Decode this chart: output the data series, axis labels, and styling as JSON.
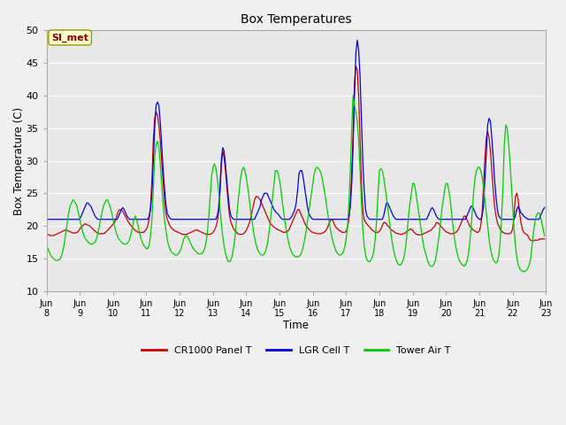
{
  "title": "Box Temperatures",
  "xlabel": "Time",
  "ylabel": "Box Temperature (C)",
  "ylim": [
    10,
    50
  ],
  "background_color": "#e8e8e8",
  "fig_facecolor": "#f0f0f0",
  "legend_label": "SI_met",
  "series": {
    "CR1000 Panel T": {
      "color": "#cc0000"
    },
    "LGR Cell T": {
      "color": "#0000ee"
    },
    "Tower Air T": {
      "color": "#00cc00"
    }
  },
  "ytick_labels": [
    10,
    15,
    20,
    25,
    30,
    35,
    40,
    45,
    50
  ],
  "xtick_labels": [
    "Jun 8",
    "Jun 9",
    "Jun 10",
    "Jun 11",
    "Jun 12",
    "Jun 13",
    "Jun 14",
    "Jun 15",
    "Jun 16",
    "Jun 17",
    "Jun 18",
    "Jun 19",
    "Jun 20",
    "Jun 21",
    "Jun 22",
    "Jun 23"
  ],
  "cr1000_x": [
    8.0,
    8.042,
    8.083,
    8.125,
    8.167,
    8.208,
    8.25,
    8.292,
    8.333,
    8.375,
    8.417,
    8.458,
    8.5,
    8.542,
    8.583,
    8.625,
    8.667,
    8.708,
    8.75,
    8.792,
    8.833,
    8.875,
    8.917,
    8.958,
    9.0,
    9.042,
    9.083,
    9.125,
    9.167,
    9.208,
    9.25,
    9.292,
    9.333,
    9.375,
    9.417,
    9.458,
    9.5,
    9.542,
    9.583,
    9.625,
    9.667,
    9.708,
    9.75,
    9.792,
    9.833,
    9.875,
    9.917,
    9.958,
    10.0,
    10.042,
    10.083,
    10.125,
    10.167,
    10.208,
    10.25,
    10.292,
    10.333,
    10.375,
    10.417,
    10.458,
    10.5,
    10.542,
    10.583,
    10.625,
    10.667,
    10.708,
    10.75,
    10.792,
    10.833,
    10.875,
    10.917,
    10.958,
    11.0,
    11.042,
    11.083,
    11.125,
    11.167,
    11.208,
    11.25,
    11.292,
    11.333,
    11.375,
    11.417,
    11.458,
    11.5,
    11.542,
    11.583,
    11.625,
    11.667,
    11.708,
    11.75,
    11.792,
    11.833,
    11.875,
    11.917,
    11.958,
    12.0,
    12.042,
    12.083,
    12.125,
    12.167,
    12.208,
    12.25,
    12.292,
    12.333,
    12.375,
    12.417,
    12.458,
    12.5,
    12.542,
    12.583,
    12.625,
    12.667,
    12.708,
    12.75,
    12.792,
    12.833,
    12.875,
    12.917,
    12.958,
    13.0,
    13.042,
    13.083,
    13.125,
    13.167,
    13.208,
    13.25,
    13.292,
    13.333,
    13.375,
    13.417,
    13.458,
    13.5,
    13.542,
    13.583,
    13.625,
    13.667,
    13.708,
    13.75,
    13.792,
    13.833,
    13.875,
    13.917,
    13.958,
    14.0,
    14.042,
    14.083,
    14.125,
    14.167,
    14.208,
    14.25,
    14.292,
    14.333,
    14.375,
    14.417,
    14.458,
    14.5,
    14.542,
    14.583,
    14.625,
    14.667,
    14.708,
    14.75,
    14.792,
    14.833,
    14.875,
    14.917,
    14.958,
    15.0,
    15.042,
    15.083,
    15.125,
    15.167,
    15.208,
    15.25,
    15.292,
    15.333,
    15.375,
    15.417,
    15.458,
    15.5,
    15.542,
    15.583,
    15.625,
    15.667,
    15.708,
    15.75,
    15.792,
    15.833,
    15.875,
    15.917,
    15.958,
    16.0,
    16.042,
    16.083,
    16.125,
    16.167,
    16.208,
    16.25,
    16.292,
    16.333,
    16.375,
    16.417,
    16.458,
    16.5,
    16.542,
    16.583,
    16.625,
    16.667,
    16.708,
    16.75,
    16.792,
    16.833,
    16.875,
    16.917,
    16.958,
    17.0,
    17.042,
    17.083,
    17.125,
    17.167,
    17.208,
    17.25,
    17.292,
    17.333,
    17.375,
    17.417,
    17.458,
    17.5,
    17.542,
    17.583,
    17.625,
    17.667,
    17.708,
    17.75,
    17.792,
    17.833,
    17.875,
    17.917,
    17.958,
    18.0,
    18.042,
    18.083,
    18.125,
    18.167,
    18.208,
    18.25,
    18.292,
    18.333,
    18.375,
    18.417,
    18.458,
    18.5,
    18.542,
    18.583,
    18.625,
    18.667,
    18.708,
    18.75,
    18.792,
    18.833,
    18.875,
    18.917,
    18.958,
    19.0,
    19.042,
    19.083,
    19.125,
    19.167,
    19.208,
    19.25,
    19.292,
    19.333,
    19.375,
    19.417,
    19.458,
    19.5,
    19.542,
    19.583,
    19.625,
    19.667,
    19.708,
    19.75,
    19.792,
    19.833,
    19.875,
    19.917,
    19.958,
    20.0,
    20.042,
    20.083,
    20.125,
    20.167,
    20.208,
    20.25,
    20.292,
    20.333,
    20.375,
    20.417,
    20.458,
    20.5,
    20.542,
    20.583,
    20.625,
    20.667,
    20.708,
    20.75,
    20.792,
    20.833,
    20.875,
    20.917,
    20.958,
    21.0,
    21.042,
    21.083,
    21.125,
    21.167,
    21.208,
    21.25,
    21.292,
    21.333,
    21.375,
    21.417,
    21.458,
    21.5,
    21.542,
    21.583,
    21.625,
    21.667,
    21.708,
    21.75,
    21.792,
    21.833,
    21.875,
    21.917,
    21.958,
    22.0,
    22.042,
    22.083,
    22.125,
    22.167,
    22.208,
    22.25,
    22.292,
    22.333,
    22.375,
    22.417,
    22.458,
    22.5,
    22.542,
    22.583,
    22.625,
    22.667,
    22.708,
    22.75,
    22.792,
    22.833,
    22.875,
    22.917,
    22.958
  ],
  "cr1000_y": [
    18.8,
    18.7,
    18.6,
    18.5,
    18.5,
    18.5,
    18.6,
    18.7,
    18.8,
    18.9,
    19.0,
    19.1,
    19.2,
    19.3,
    19.4,
    19.3,
    19.2,
    19.1,
    19.0,
    18.9,
    18.9,
    18.9,
    19.0,
    19.2,
    19.5,
    19.8,
    20.0,
    20.2,
    20.3,
    20.2,
    20.1,
    20.0,
    19.8,
    19.6,
    19.4,
    19.2,
    19.0,
    18.9,
    18.8,
    18.8,
    18.8,
    18.8,
    18.9,
    19.1,
    19.3,
    19.5,
    19.8,
    20.0,
    20.3,
    20.5,
    21.0,
    21.8,
    22.3,
    22.5,
    22.5,
    22.2,
    21.8,
    21.4,
    21.0,
    20.6,
    20.3,
    20.0,
    19.8,
    19.5,
    19.3,
    19.2,
    19.0,
    19.0,
    19.0,
    19.0,
    19.0,
    19.2,
    19.5,
    20.0,
    21.0,
    23.0,
    27.0,
    33.0,
    36.5,
    37.5,
    37.0,
    35.5,
    33.0,
    30.0,
    27.0,
    24.0,
    22.0,
    21.0,
    20.5,
    20.0,
    19.7,
    19.5,
    19.3,
    19.2,
    19.1,
    19.0,
    18.9,
    18.8,
    18.7,
    18.7,
    18.7,
    18.7,
    18.8,
    18.9,
    19.0,
    19.1,
    19.2,
    19.3,
    19.4,
    19.3,
    19.2,
    19.1,
    19.0,
    18.9,
    18.8,
    18.7,
    18.7,
    18.7,
    18.7,
    18.8,
    19.0,
    19.3,
    19.8,
    20.5,
    22.0,
    25.0,
    29.0,
    31.5,
    30.5,
    28.5,
    26.0,
    23.5,
    21.5,
    20.5,
    20.0,
    19.5,
    19.2,
    19.0,
    18.8,
    18.7,
    18.7,
    18.7,
    18.8,
    19.0,
    19.3,
    19.8,
    20.3,
    21.0,
    22.0,
    23.0,
    24.0,
    24.5,
    24.5,
    24.3,
    24.0,
    23.5,
    23.0,
    22.5,
    22.0,
    21.5,
    21.0,
    20.5,
    20.2,
    20.0,
    19.8,
    19.7,
    19.5,
    19.4,
    19.3,
    19.2,
    19.1,
    19.0,
    19.0,
    19.1,
    19.2,
    19.5,
    20.0,
    20.5,
    21.0,
    21.5,
    22.0,
    22.5,
    22.5,
    22.0,
    21.5,
    21.0,
    20.5,
    20.0,
    19.8,
    19.5,
    19.3,
    19.1,
    19.0,
    18.9,
    18.9,
    18.8,
    18.8,
    18.8,
    18.8,
    18.9,
    19.0,
    19.2,
    19.5,
    20.0,
    20.5,
    21.0,
    21.0,
    20.5,
    20.0,
    19.7,
    19.5,
    19.3,
    19.2,
    19.0,
    19.0,
    19.0,
    19.2,
    19.8,
    21.0,
    23.5,
    28.0,
    34.0,
    42.0,
    44.5,
    44.0,
    40.0,
    33.5,
    27.0,
    22.5,
    21.0,
    20.5,
    20.3,
    20.0,
    19.8,
    19.5,
    19.3,
    19.2,
    19.0,
    19.0,
    19.0,
    19.2,
    19.5,
    20.0,
    20.5,
    20.5,
    20.3,
    20.0,
    19.8,
    19.5,
    19.3,
    19.2,
    19.0,
    18.9,
    18.8,
    18.8,
    18.7,
    18.7,
    18.8,
    18.8,
    19.0,
    19.2,
    19.3,
    19.5,
    19.5,
    19.3,
    19.0,
    18.8,
    18.7,
    18.6,
    18.6,
    18.7,
    18.7,
    18.8,
    18.9,
    19.0,
    19.1,
    19.2,
    19.3,
    19.5,
    19.8,
    20.0,
    20.5,
    20.5,
    20.3,
    20.0,
    19.8,
    19.5,
    19.3,
    19.1,
    19.0,
    18.9,
    18.8,
    18.8,
    18.8,
    18.9,
    19.0,
    19.2,
    19.5,
    20.0,
    20.5,
    21.0,
    21.5,
    21.5,
    21.0,
    20.5,
    20.0,
    19.7,
    19.5,
    19.3,
    19.2,
    19.0,
    19.0,
    19.2,
    20.0,
    22.0,
    26.0,
    30.5,
    33.5,
    34.5,
    33.5,
    31.5,
    28.5,
    25.5,
    23.0,
    21.5,
    20.5,
    20.0,
    19.5,
    19.2,
    19.0,
    18.9,
    18.8,
    18.8,
    18.8,
    18.8,
    19.0,
    19.5,
    21.5,
    24.5,
    25.0,
    24.0,
    22.0,
    20.5,
    19.5,
    19.0,
    18.8,
    18.7,
    18.5,
    18.0,
    17.8,
    17.7,
    17.7,
    17.8,
    17.8,
    17.8,
    17.9,
    18.0,
    18.0,
    18.0,
    18.0
  ],
  "lgr_y": [
    21.0,
    21.0,
    21.0,
    21.0,
    21.0,
    21.0,
    21.0,
    21.0,
    21.0,
    21.0,
    21.0,
    21.0,
    21.0,
    21.0,
    21.0,
    21.0,
    21.0,
    21.0,
    21.0,
    21.0,
    21.0,
    21.0,
    21.0,
    21.0,
    21.0,
    21.5,
    22.0,
    22.5,
    23.0,
    23.5,
    23.5,
    23.2,
    23.0,
    22.5,
    22.0,
    21.5,
    21.2,
    21.0,
    21.0,
    21.0,
    21.0,
    21.0,
    21.0,
    21.0,
    21.0,
    21.0,
    21.0,
    21.0,
    21.0,
    21.0,
    21.0,
    21.0,
    21.5,
    22.0,
    22.5,
    22.8,
    22.5,
    22.0,
    21.5,
    21.2,
    21.0,
    21.0,
    21.0,
    21.0,
    21.0,
    21.0,
    21.0,
    21.0,
    21.0,
    21.0,
    21.0,
    21.0,
    21.0,
    21.0,
    21.5,
    22.5,
    25.0,
    30.0,
    35.0,
    38.5,
    39.0,
    38.5,
    36.0,
    32.5,
    29.0,
    26.0,
    23.5,
    22.0,
    21.5,
    21.2,
    21.0,
    21.0,
    21.0,
    21.0,
    21.0,
    21.0,
    21.0,
    21.0,
    21.0,
    21.0,
    21.0,
    21.0,
    21.0,
    21.0,
    21.0,
    21.0,
    21.0,
    21.0,
    21.0,
    21.0,
    21.0,
    21.0,
    21.0,
    21.0,
    21.0,
    21.0,
    21.0,
    21.0,
    21.0,
    21.0,
    21.0,
    21.0,
    21.0,
    21.5,
    22.5,
    25.5,
    30.0,
    32.0,
    31.5,
    29.5,
    27.0,
    24.5,
    22.5,
    21.5,
    21.2,
    21.0,
    21.0,
    21.0,
    21.0,
    21.0,
    21.0,
    21.0,
    21.0,
    21.0,
    21.0,
    21.0,
    21.0,
    21.0,
    21.0,
    21.0,
    21.0,
    21.5,
    22.0,
    22.5,
    23.0,
    24.0,
    24.5,
    25.0,
    25.0,
    25.0,
    24.5,
    24.0,
    23.5,
    23.0,
    22.5,
    22.2,
    22.0,
    21.8,
    21.5,
    21.2,
    21.0,
    21.0,
    21.0,
    21.0,
    21.0,
    21.0,
    21.2,
    21.5,
    22.0,
    22.5,
    23.5,
    25.5,
    28.0,
    28.5,
    28.5,
    27.5,
    26.0,
    24.5,
    23.0,
    22.0,
    21.5,
    21.2,
    21.0,
    21.0,
    21.0,
    21.0,
    21.0,
    21.0,
    21.0,
    21.0,
    21.0,
    21.0,
    21.0,
    21.0,
    21.0,
    21.0,
    21.0,
    21.0,
    21.0,
    21.0,
    21.0,
    21.0,
    21.0,
    21.0,
    21.0,
    21.0,
    21.0,
    21.0,
    21.5,
    23.0,
    26.5,
    32.0,
    40.0,
    46.5,
    48.5,
    47.0,
    43.0,
    36.5,
    30.0,
    25.5,
    22.5,
    21.5,
    21.2,
    21.0,
    21.0,
    21.0,
    21.0,
    21.0,
    21.0,
    21.0,
    21.0,
    21.0,
    21.0,
    21.5,
    22.5,
    23.5,
    23.5,
    23.0,
    22.5,
    22.0,
    21.5,
    21.2,
    21.0,
    21.0,
    21.0,
    21.0,
    21.0,
    21.0,
    21.0,
    21.0,
    21.0,
    21.0,
    21.0,
    21.0,
    21.0,
    21.0,
    21.0,
    21.0,
    21.0,
    21.0,
    21.0,
    21.0,
    21.0,
    21.0,
    21.0,
    21.5,
    22.0,
    22.5,
    22.8,
    22.5,
    22.0,
    21.5,
    21.2,
    21.0,
    21.0,
    21.0,
    21.0,
    21.0,
    21.0,
    21.0,
    21.0,
    21.0,
    21.0,
    21.0,
    21.0,
    21.0,
    21.0,
    21.0,
    21.0,
    21.0,
    21.0,
    21.0,
    21.0,
    21.5,
    22.0,
    22.5,
    23.0,
    23.0,
    22.5,
    22.0,
    21.5,
    21.2,
    21.0,
    21.0,
    21.5,
    23.0,
    27.0,
    31.0,
    35.5,
    36.5,
    36.0,
    33.5,
    30.5,
    27.0,
    24.5,
    22.5,
    21.5,
    21.2,
    21.0,
    21.0,
    21.0,
    21.0,
    21.0,
    21.0,
    21.0,
    21.0,
    21.0,
    21.0,
    21.5,
    22.5,
    23.0,
    22.5,
    22.0,
    21.8,
    21.5,
    21.3,
    21.2,
    21.0,
    21.0,
    21.0,
    21.0,
    21.0,
    21.0,
    21.0,
    21.0,
    21.0,
    21.5,
    22.0,
    22.5,
    22.8
  ],
  "tower_y": [
    17.0,
    16.5,
    16.0,
    15.5,
    15.2,
    15.0,
    14.8,
    14.7,
    14.7,
    14.8,
    15.0,
    15.5,
    16.3,
    17.5,
    19.0,
    20.5,
    22.0,
    23.0,
    23.5,
    24.0,
    23.8,
    23.5,
    23.0,
    22.0,
    21.0,
    20.0,
    19.2,
    18.5,
    18.0,
    17.8,
    17.5,
    17.3,
    17.2,
    17.2,
    17.3,
    17.5,
    18.0,
    18.8,
    19.8,
    21.0,
    22.0,
    23.0,
    23.5,
    24.0,
    24.0,
    23.5,
    22.8,
    22.0,
    21.0,
    20.0,
    19.2,
    18.5,
    18.0,
    17.8,
    17.5,
    17.3,
    17.2,
    17.2,
    17.3,
    17.5,
    18.0,
    18.8,
    19.8,
    21.0,
    21.5,
    21.0,
    20.0,
    19.0,
    18.2,
    17.5,
    17.0,
    16.8,
    16.5,
    16.5,
    17.0,
    18.5,
    21.0,
    25.5,
    30.5,
    32.5,
    33.0,
    32.0,
    29.5,
    26.5,
    23.5,
    21.0,
    19.5,
    18.0,
    17.0,
    16.5,
    16.0,
    15.8,
    15.7,
    15.5,
    15.5,
    15.7,
    16.0,
    16.5,
    17.2,
    18.0,
    18.5,
    18.5,
    18.2,
    17.8,
    17.3,
    16.8,
    16.5,
    16.2,
    16.0,
    15.8,
    15.7,
    15.7,
    15.8,
    16.0,
    16.5,
    17.5,
    19.0,
    21.5,
    24.5,
    27.5,
    29.0,
    29.5,
    29.0,
    27.5,
    25.5,
    23.0,
    20.5,
    18.5,
    17.0,
    15.8,
    15.0,
    14.5,
    14.5,
    14.8,
    15.5,
    16.8,
    18.5,
    21.0,
    23.5,
    25.5,
    27.5,
    28.5,
    29.0,
    28.5,
    27.5,
    26.0,
    24.5,
    22.5,
    21.0,
    19.5,
    18.2,
    17.2,
    16.5,
    16.0,
    15.7,
    15.5,
    15.5,
    15.7,
    16.2,
    17.0,
    18.3,
    20.0,
    22.0,
    24.5,
    26.5,
    28.5,
    28.5,
    28.0,
    27.0,
    25.5,
    23.8,
    22.0,
    20.5,
    19.2,
    18.0,
    17.0,
    16.3,
    15.8,
    15.5,
    15.3,
    15.2,
    15.2,
    15.3,
    15.5,
    16.0,
    16.8,
    17.8,
    19.0,
    20.5,
    22.0,
    23.5,
    25.0,
    26.5,
    28.0,
    28.8,
    29.0,
    28.8,
    28.5,
    28.0,
    27.0,
    25.8,
    24.5,
    23.0,
    21.5,
    20.2,
    19.0,
    18.0,
    17.2,
    16.5,
    16.0,
    15.7,
    15.5,
    15.5,
    15.7,
    16.0,
    16.8,
    18.0,
    20.0,
    23.5,
    28.5,
    35.0,
    40.0,
    38.5,
    37.5,
    36.0,
    33.0,
    28.5,
    23.5,
    19.5,
    17.0,
    15.5,
    14.8,
    14.5,
    14.5,
    14.8,
    15.3,
    16.2,
    18.0,
    21.0,
    25.0,
    28.5,
    28.8,
    28.5,
    27.5,
    26.0,
    24.5,
    22.8,
    21.0,
    19.3,
    17.8,
    16.5,
    15.5,
    14.8,
    14.3,
    14.0,
    14.0,
    14.2,
    14.7,
    15.5,
    17.0,
    19.0,
    21.5,
    23.5,
    25.0,
    26.5,
    26.5,
    25.5,
    24.0,
    22.5,
    21.0,
    19.5,
    18.0,
    16.8,
    16.0,
    15.2,
    14.5,
    14.0,
    13.8,
    13.8,
    14.0,
    14.5,
    15.5,
    17.0,
    18.5,
    20.5,
    22.5,
    24.0,
    25.5,
    26.5,
    26.5,
    25.5,
    24.0,
    22.0,
    20.0,
    18.2,
    16.8,
    15.8,
    15.0,
    14.5,
    14.2,
    14.0,
    13.8,
    14.0,
    14.5,
    15.5,
    17.2,
    19.5,
    22.5,
    25.5,
    27.5,
    28.5,
    29.0,
    29.0,
    28.5,
    27.5,
    26.0,
    24.0,
    22.0,
    20.0,
    18.0,
    16.5,
    15.5,
    14.8,
    14.5,
    14.3,
    14.5,
    15.5,
    17.5,
    21.0,
    26.0,
    32.5,
    35.5,
    35.0,
    33.0,
    30.0,
    26.5,
    23.0,
    19.5,
    17.0,
    15.2,
    14.0,
    13.5,
    13.2,
    13.0,
    13.0,
    13.0,
    13.2,
    13.5,
    14.0,
    15.0,
    17.0,
    19.0,
    20.5,
    21.5,
    22.0,
    22.0,
    21.5,
    20.5,
    19.5,
    18.5
  ]
}
